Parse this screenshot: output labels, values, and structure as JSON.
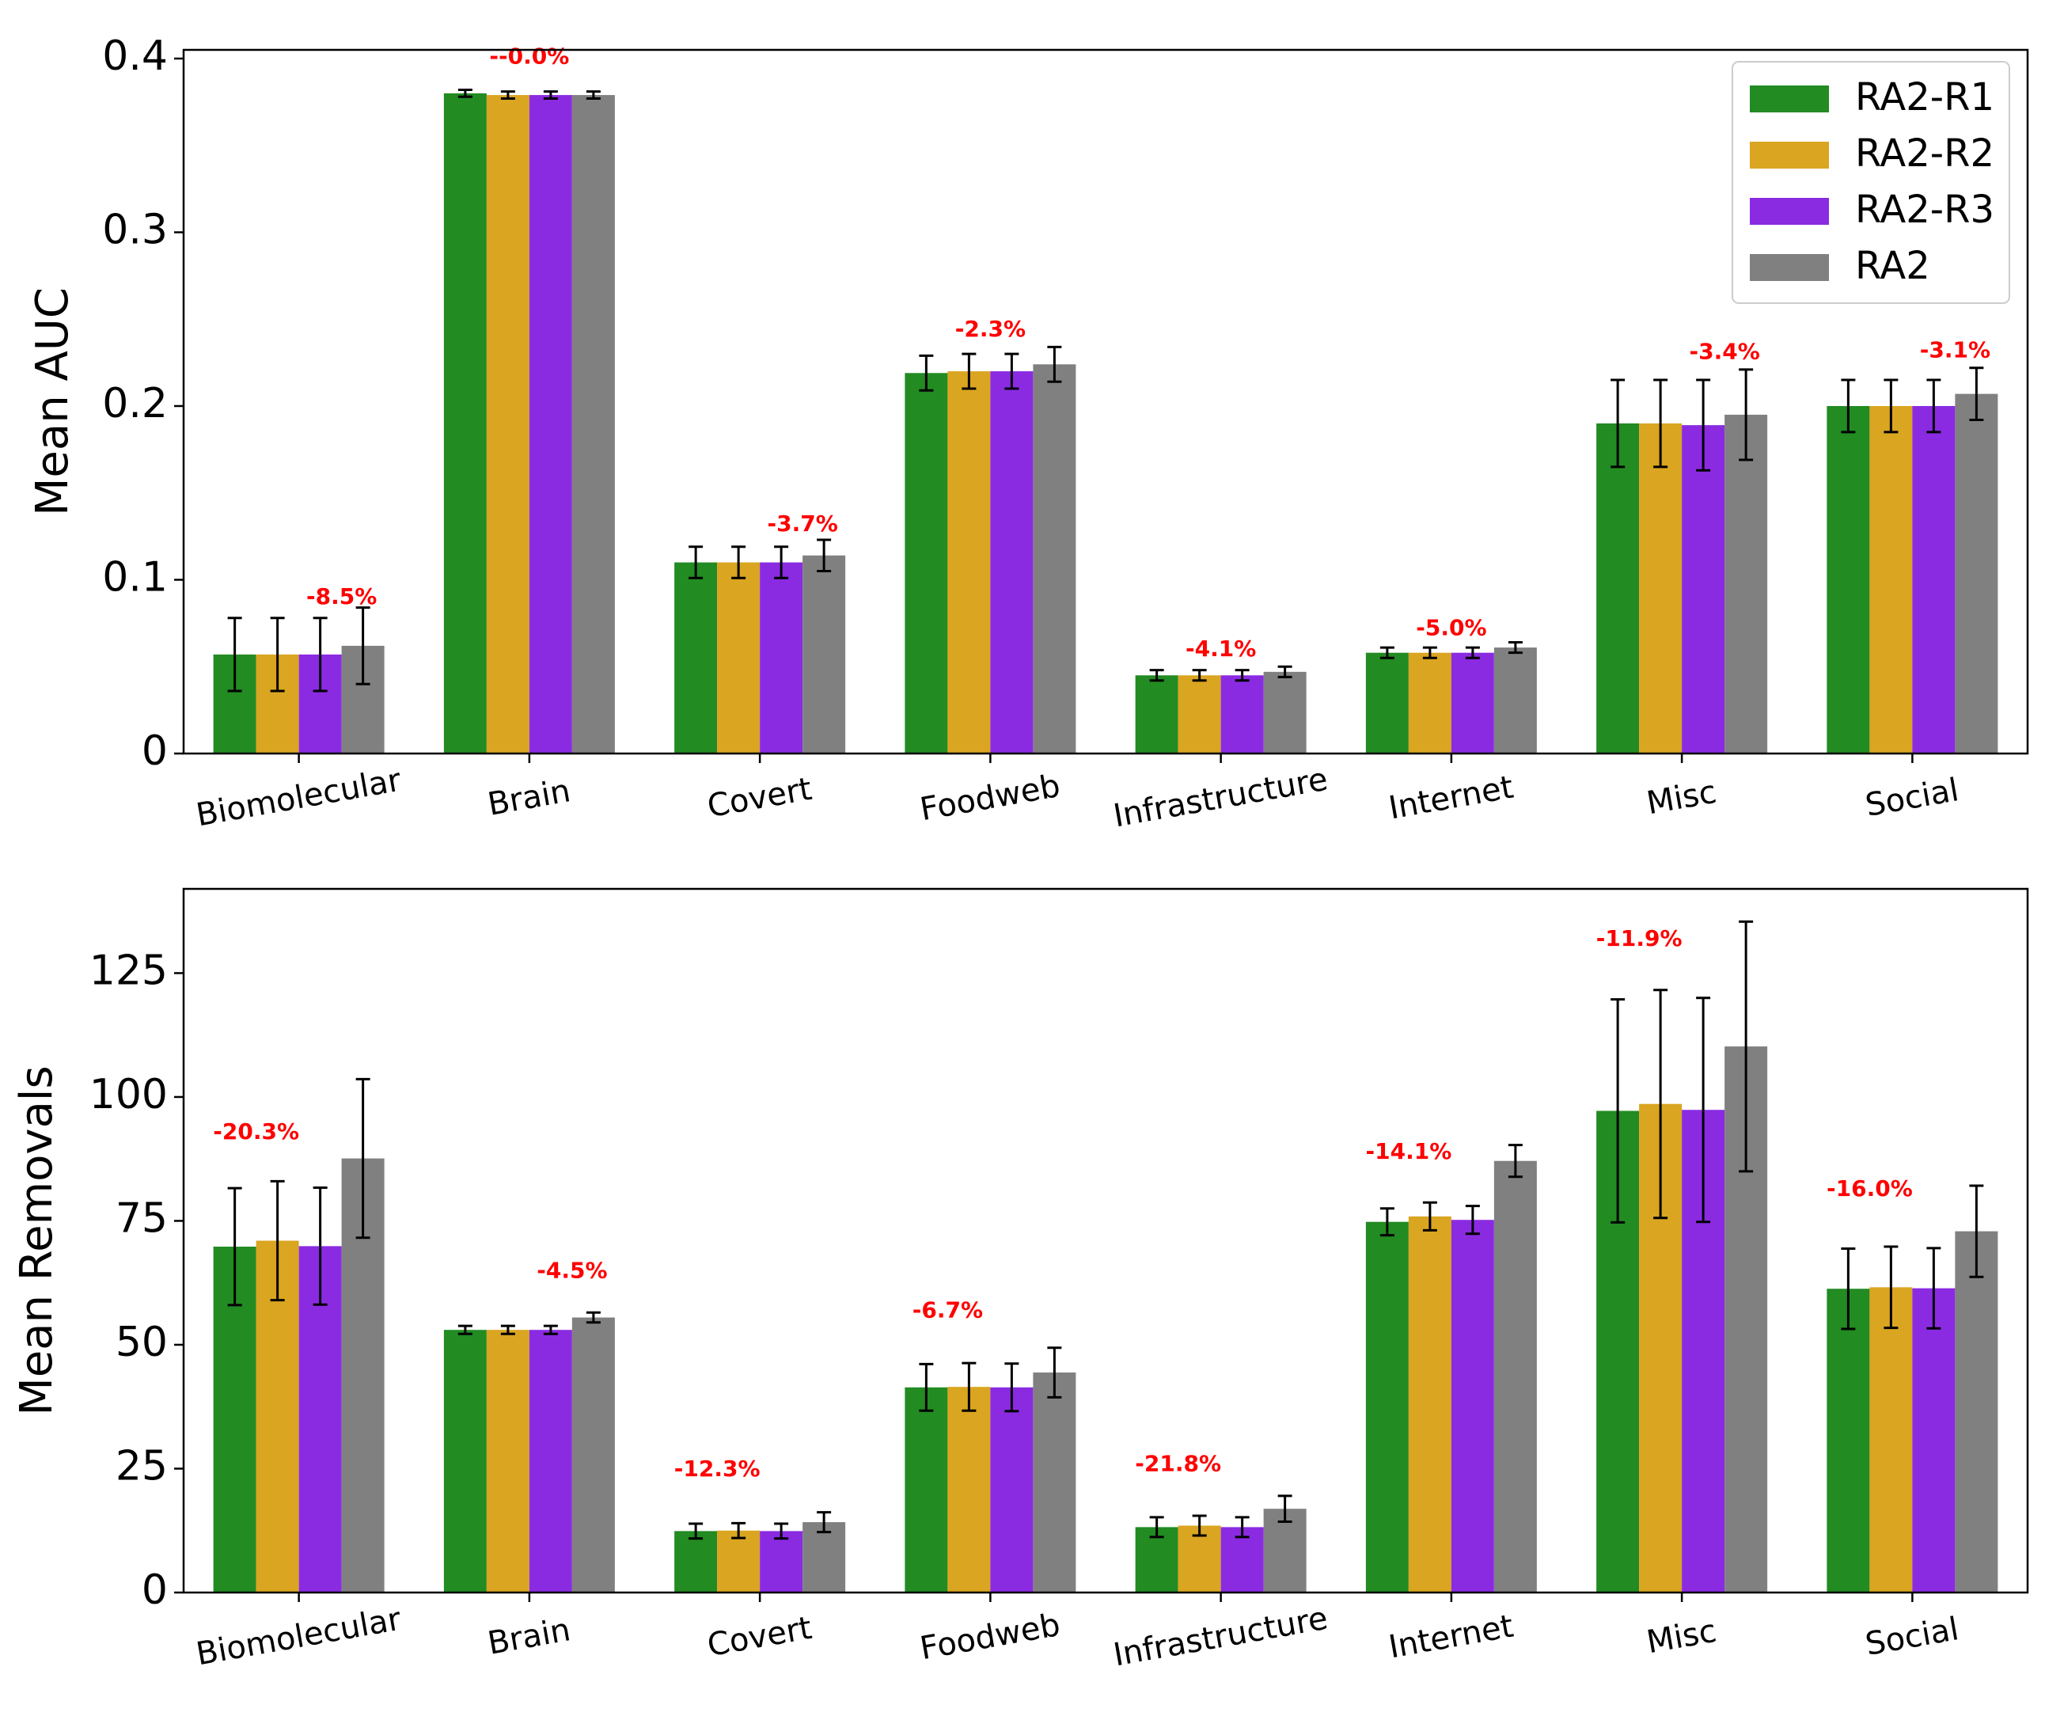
{
  "colors": {
    "RA2-R1": "#228b22",
    "RA2-R2": "#daa520",
    "RA2-R3": "#8a2be2",
    "RA2": "#808080",
    "annotation": "#ff0000",
    "axis": "#000000"
  },
  "chart_data": [
    {
      "type": "bar",
      "title": "",
      "xlabel": "",
      "ylabel": "Mean AUC",
      "ylim": [
        0,
        0.405
      ],
      "yticks": [
        0,
        0.1,
        0.2,
        0.3,
        0.4
      ],
      "ytick_labels": [
        "0",
        "0.1",
        "0.2",
        "0.3",
        "0.4"
      ],
      "categories": [
        "Biomolecular",
        "Brain",
        "Covert",
        "Foodweb",
        "Infrastructure",
        "Internet",
        "Misc",
        "Social"
      ],
      "series": [
        {
          "name": "RA2-R1",
          "values": [
            0.057,
            0.38,
            0.11,
            0.219,
            0.045,
            0.058,
            0.19,
            0.2
          ],
          "errors": [
            0.021,
            0.002,
            0.009,
            0.01,
            0.003,
            0.003,
            0.025,
            0.015
          ]
        },
        {
          "name": "RA2-R2",
          "values": [
            0.057,
            0.379,
            0.11,
            0.22,
            0.045,
            0.058,
            0.19,
            0.2
          ],
          "errors": [
            0.021,
            0.002,
            0.009,
            0.01,
            0.003,
            0.003,
            0.025,
            0.015
          ]
        },
        {
          "name": "RA2-R3",
          "values": [
            0.057,
            0.379,
            0.11,
            0.22,
            0.045,
            0.058,
            0.189,
            0.2
          ],
          "errors": [
            0.021,
            0.002,
            0.009,
            0.01,
            0.003,
            0.003,
            0.026,
            0.015
          ]
        },
        {
          "name": "RA2",
          "values": [
            0.062,
            0.379,
            0.114,
            0.224,
            0.047,
            0.061,
            0.195,
            0.207
          ],
          "errors": [
            0.022,
            0.002,
            0.009,
            0.01,
            0.003,
            0.003,
            0.026,
            0.015
          ]
        }
      ],
      "annotations": [
        "-8.5%",
        "--0.0%",
        "-3.7%",
        "-2.3%",
        "-4.1%",
        "-5.0%",
        "-3.4%",
        "-3.1%"
      ],
      "annotation_values": [
        0.086,
        0.397,
        0.128,
        0.24,
        0.056,
        0.068,
        0.227,
        0.228
      ],
      "annotation_offsets": [
        1,
        0,
        1,
        0,
        0,
        0,
        1,
        1
      ],
      "legend": {
        "entries": [
          "RA2-R1",
          "RA2-R2",
          "RA2-R3",
          "RA2"
        ],
        "position": "top-right"
      }
    },
    {
      "type": "bar",
      "title": "",
      "xlabel": "",
      "ylabel": "Mean Removals",
      "ylim": [
        0,
        142
      ],
      "yticks": [
        0,
        25,
        50,
        75,
        100,
        125
      ],
      "ytick_labels": [
        "0",
        "25",
        "50",
        "75",
        "100",
        "125"
      ],
      "categories": [
        "Biomolecular",
        "Brain",
        "Covert",
        "Foodweb",
        "Infrastructure",
        "Internet",
        "Misc",
        "Social"
      ],
      "series": [
        {
          "name": "RA2-R1",
          "values": [
            69.8,
            53.0,
            12.4,
            41.4,
            13.2,
            74.8,
            97.2,
            61.3
          ],
          "errors": [
            11.8,
            0.8,
            1.5,
            4.7,
            2.0,
            2.7,
            22.5,
            8.1
          ]
        },
        {
          "name": "RA2-R2",
          "values": [
            71.0,
            53.0,
            12.5,
            41.5,
            13.5,
            75.9,
            98.6,
            61.6
          ],
          "errors": [
            12.0,
            0.8,
            1.5,
            4.8,
            2.0,
            2.8,
            23.0,
            8.2
          ]
        },
        {
          "name": "RA2-R3",
          "values": [
            69.9,
            53.0,
            12.4,
            41.4,
            13.2,
            75.2,
            97.4,
            61.4
          ],
          "errors": [
            11.8,
            0.8,
            1.5,
            4.8,
            2.0,
            2.8,
            22.6,
            8.1
          ]
        },
        {
          "name": "RA2",
          "values": [
            87.6,
            55.5,
            14.2,
            44.4,
            16.9,
            87.1,
            110.2,
            72.9
          ],
          "errors": [
            16.0,
            1.0,
            2.0,
            5.0,
            2.6,
            3.2,
            25.2,
            9.2
          ]
        }
      ],
      "annotations": [
        "-20.3%",
        "-4.5%",
        "-12.3%",
        "-6.7%",
        "-21.8%",
        "-14.1%",
        "-11.9%",
        "-16.0%"
      ],
      "annotation_values": [
        91.5,
        63.5,
        23.5,
        55.5,
        24.5,
        87.5,
        130.5,
        80.0
      ],
      "annotation_offsets": [
        -1,
        1,
        -1,
        -1,
        -1,
        -1,
        -1,
        -1
      ]
    }
  ]
}
